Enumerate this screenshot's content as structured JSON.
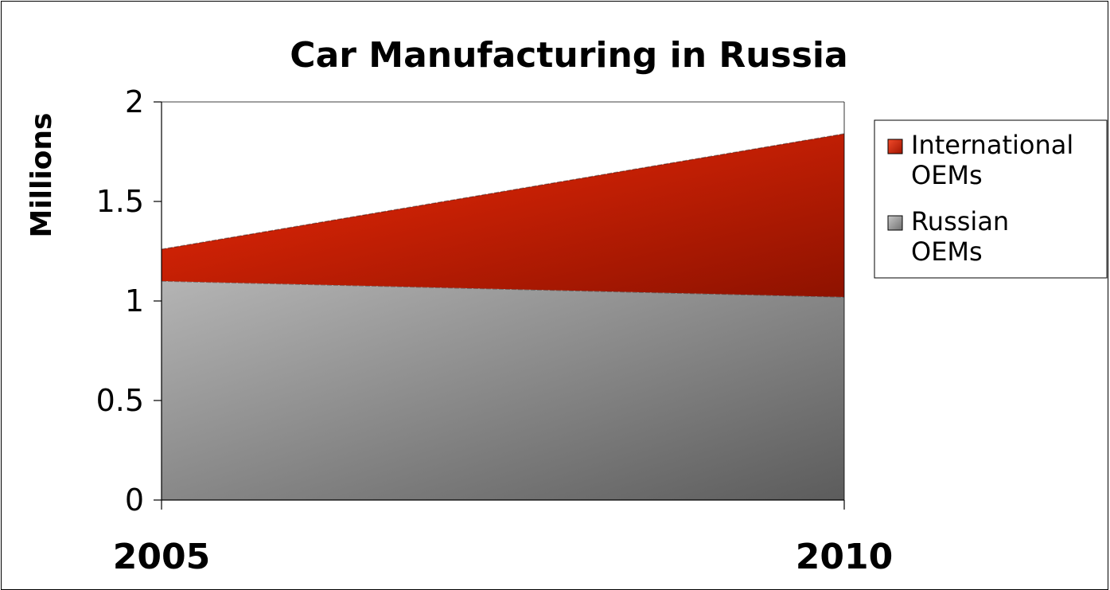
{
  "chart_data": {
    "type": "area",
    "stacked": true,
    "title": "Car Manufacturing in Russia",
    "ylabel": "Millions",
    "xlabel": "",
    "x": [
      "2005",
      "2010"
    ],
    "ylim": [
      0,
      2
    ],
    "yticks": [
      "0",
      "0.5",
      "1",
      "1.5",
      "2"
    ],
    "grid": false,
    "legend_position": "right",
    "series": [
      {
        "name": "Russian OEMs",
        "legend_lines": [
          "Russian",
          "OEMs"
        ],
        "values": [
          1.1,
          1.02
        ],
        "color": "#9a9a9a"
      },
      {
        "name": "International OEMs",
        "legend_lines": [
          "International",
          "OEMs"
        ],
        "values": [
          0.16,
          0.82
        ],
        "color": "#d42a0a"
      }
    ]
  }
}
